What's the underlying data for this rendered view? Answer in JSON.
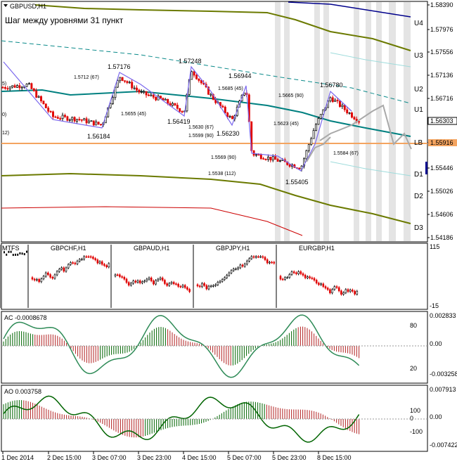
{
  "window": {
    "title": "GBPUSD,H1",
    "subtitle": "Шаг между уровнями 31 пункт"
  },
  "chart_data": [
    {
      "type": "candlestick",
      "symbol": "GBPUSD",
      "timeframe": "H1",
      "title": "Шаг между уровнями 31 пункт",
      "y_ticks": [
        "1.58390",
        "1.57976",
        "1.57556",
        "1.57136",
        "1.56716",
        "1.56303",
        "1.55916",
        "1.55446",
        "1.55026",
        "1.54606",
        "1.54186"
      ],
      "current_price": "1.56303",
      "marked_price": "1.55916",
      "levels": [
        {
          "name": "U4",
          "price": 1.5792
        },
        {
          "name": "U3",
          "price": 1.5761
        },
        {
          "name": "U2",
          "price": 1.5699
        },
        {
          "name": "U1",
          "price": 1.5668
        },
        {
          "name": "LB",
          "price": 1.5606
        },
        {
          "name": "D1",
          "price": 1.5544
        },
        {
          "name": "D2",
          "price": 1.5513
        },
        {
          "name": "D3",
          "price": 1.5451
        }
      ],
      "pivots": [
        "1.57176",
        "1.57248",
        "1.56944",
        "1.56780",
        "1.56184",
        "1.56419",
        "1.56230",
        "1.55405"
      ],
      "projections": [
        "1.5712 (67)",
        "1.5655 (45)",
        "1.5630 (67)",
        "1.5599 (90)",
        "1.5685 (45)",
        "1.5569 (90)",
        "1.5538 (112)",
        "1.5665 (90)",
        "1.5623 (45)",
        "1.5584 (67)"
      ],
      "edge_labels": [
        "5)",
        "0)",
        "12)"
      ]
    },
    {
      "type": "candlestick",
      "name": "MTFS",
      "axis_top": "115",
      "axis_bottom": "-15",
      "panels": [
        "GBPCHF,H1",
        "GBPAUD,H1",
        "GBPJPY,H1",
        "EURGBP,H1"
      ]
    },
    {
      "type": "bar",
      "name": "AC",
      "label": "AC -0.0008678",
      "y_ticks": [
        "0.002833",
        "0.00",
        "-0.003258"
      ],
      "left_ticks": [
        "80",
        "20"
      ]
    },
    {
      "type": "bar",
      "name": "AO",
      "label": "AO 0.003758",
      "y_ticks": [
        "0.007913",
        "0.00",
        "-0.007422"
      ],
      "left_ticks": [
        "100",
        "0",
        "-100"
      ]
    }
  ],
  "x_axis": {
    "labels": [
      "1 Dec 2014",
      "2 Dec 15:00",
      "3 Dec 07:00",
      "3 Dec 23:00",
      "4 Dec 15:00",
      "5 Dec 07:00",
      "5 Dec 23:00",
      "8 Dec 15:00"
    ]
  },
  "colors": {
    "bull": "#000000",
    "bear": "#e00000",
    "trendline": "#7b68ee",
    "lb_line": "#008080",
    "olive": "#6b7a00",
    "red_band": "#cc0000",
    "blue_band": "#00008b",
    "marked": "#f4a460",
    "forecast": "#a9a9a9"
  }
}
